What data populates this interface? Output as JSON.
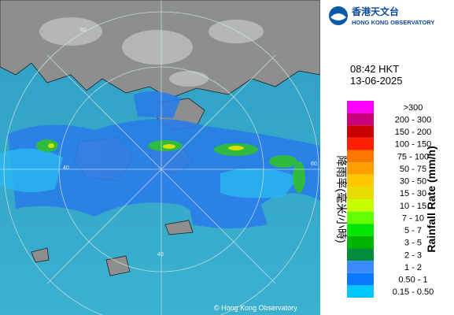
{
  "header": {
    "logo_chinese": "香港天文台",
    "logo_english": "HONG KONG OBSERVATORY"
  },
  "time": "08:42 HKT",
  "date": "13-06-2025",
  "legend": {
    "title_chinese": "降雨率(毫米/小時)",
    "title_english": "Rainfall Rate (mm/h)",
    "items": [
      {
        "label": ">300",
        "color": "#ff00ff"
      },
      {
        "label": "200 - 300",
        "color": "#c8007c"
      },
      {
        "label": "150 - 200",
        "color": "#c80000"
      },
      {
        "label": "100 - 150",
        "color": "#ff1e00"
      },
      {
        "label": "75 - 100",
        "color": "#ff7800"
      },
      {
        "label": "50 - 75",
        "color": "#ffa000"
      },
      {
        "label": "30 - 50",
        "color": "#ffc800"
      },
      {
        "label": "15 - 30",
        "color": "#e6dc00"
      },
      {
        "label": "10 - 15",
        "color": "#c8ff00"
      },
      {
        "label": "7 - 10",
        "color": "#64ff00"
      },
      {
        "label": "5 - 7",
        "color": "#00e600"
      },
      {
        "label": "3 - 5",
        "color": "#00b400"
      },
      {
        "label": "2 - 3",
        "color": "#008c3c"
      },
      {
        "label": "1 - 2",
        "color": "#3c8cff"
      },
      {
        "label": "0.50 - 1",
        "color": "#0a78ff"
      },
      {
        "label": "0.15 - 0.50",
        "color": "#00c8ff"
      }
    ]
  },
  "map": {
    "ring_labels": [
      "60",
      "60",
      "40",
      "40"
    ],
    "copyright": "© Hong Kong Observatory"
  }
}
